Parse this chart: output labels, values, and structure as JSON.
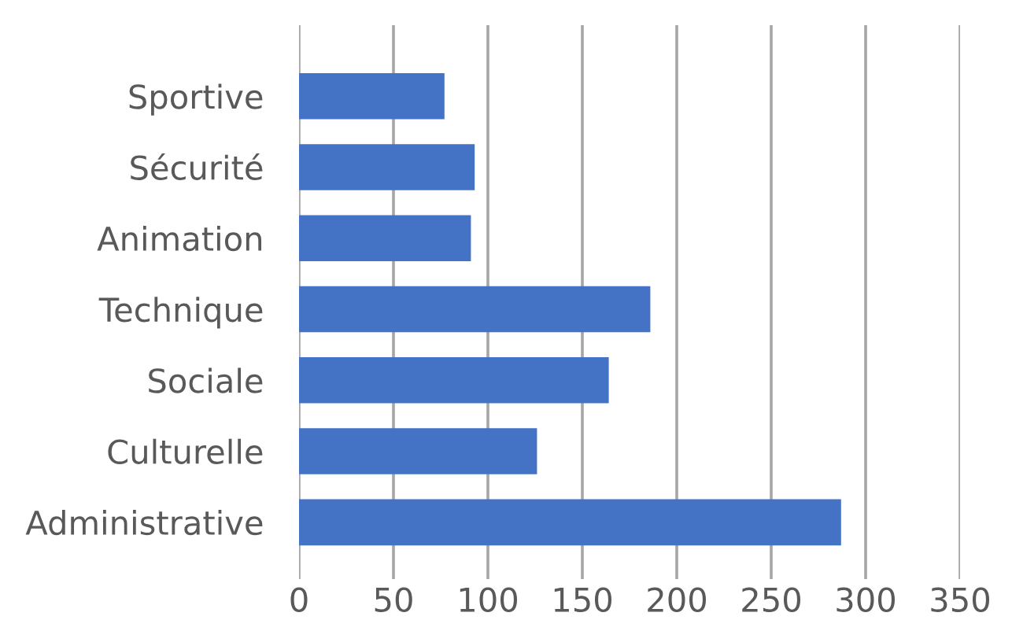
{
  "chart_data": {
    "type": "bar",
    "orientation": "horizontal",
    "categories": [
      "Sportive",
      "Sécurité",
      "Animation",
      "Technique",
      "Sociale",
      "Culturelle",
      "Administrative"
    ],
    "values": [
      77,
      93,
      91,
      186,
      164,
      126,
      287
    ],
    "color": "#4472c4",
    "xlim": [
      0,
      350
    ],
    "xticks": [
      0,
      50,
      100,
      150,
      200,
      250,
      300,
      350
    ],
    "grid": "x",
    "legend": false
  }
}
